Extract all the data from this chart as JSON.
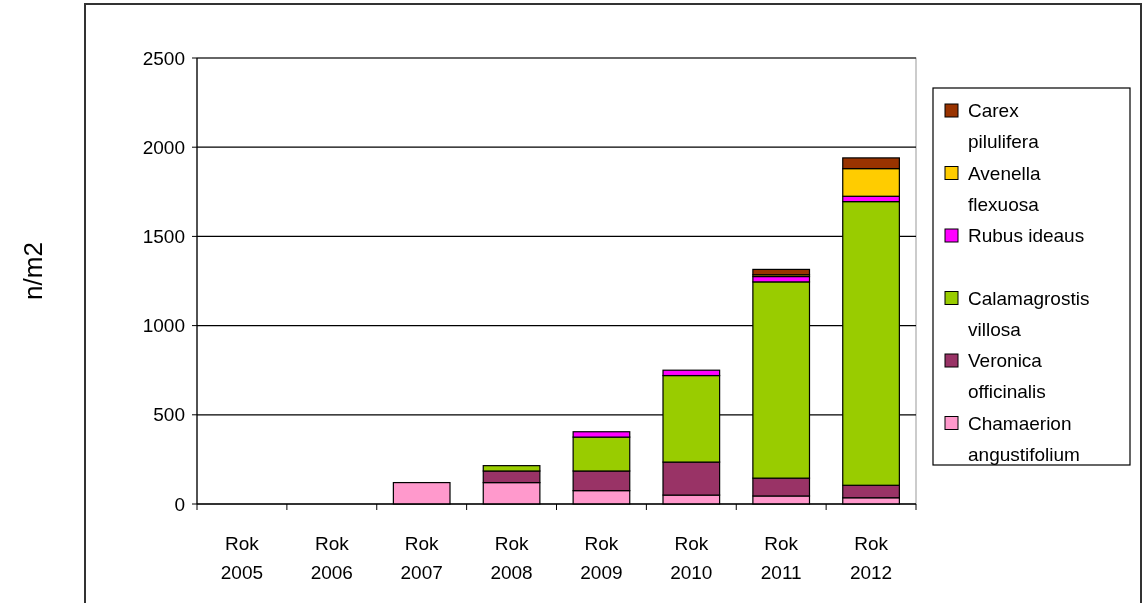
{
  "chart_data": {
    "type": "bar",
    "stacked": true,
    "ylabel": "n/m2",
    "categories": [
      "Rok 2005",
      "Rok 2006",
      "Rok 2007",
      "Rok 2008",
      "Rok 2009",
      "Rok 2010",
      "Rok 2011",
      "Rok 2012"
    ],
    "series": [
      {
        "name": "Chamaerion angustifolium",
        "color": "#ff99cc",
        "values": [
          0,
          0,
          120,
          120,
          75,
          50,
          45,
          35
        ]
      },
      {
        "name": "Veronica officinalis",
        "color": "#993366",
        "values": [
          0,
          0,
          0,
          65,
          110,
          185,
          100,
          70
        ]
      },
      {
        "name": "Calamagrostis villosa",
        "color": "#99cc00",
        "values": [
          0,
          0,
          0,
          30,
          190,
          485,
          1100,
          1590
        ]
      },
      {
        "name": "Rubus ideaus",
        "color": "#ff00ff",
        "values": [
          0,
          0,
          0,
          0,
          30,
          30,
          30,
          30
        ]
      },
      {
        "name": "Avenella flexuosa",
        "color": "#ffcc00",
        "values": [
          0,
          0,
          0,
          0,
          0,
          0,
          10,
          155
        ]
      },
      {
        "name": "Carex pilulifera",
        "color": "#993300",
        "values": [
          0,
          0,
          0,
          0,
          0,
          0,
          30,
          60
        ]
      }
    ],
    "ylim": [
      0,
      2500
    ],
    "yticks": [
      0,
      500,
      1000,
      1500,
      2000,
      2500
    ],
    "grid": "y",
    "legend": "right"
  }
}
